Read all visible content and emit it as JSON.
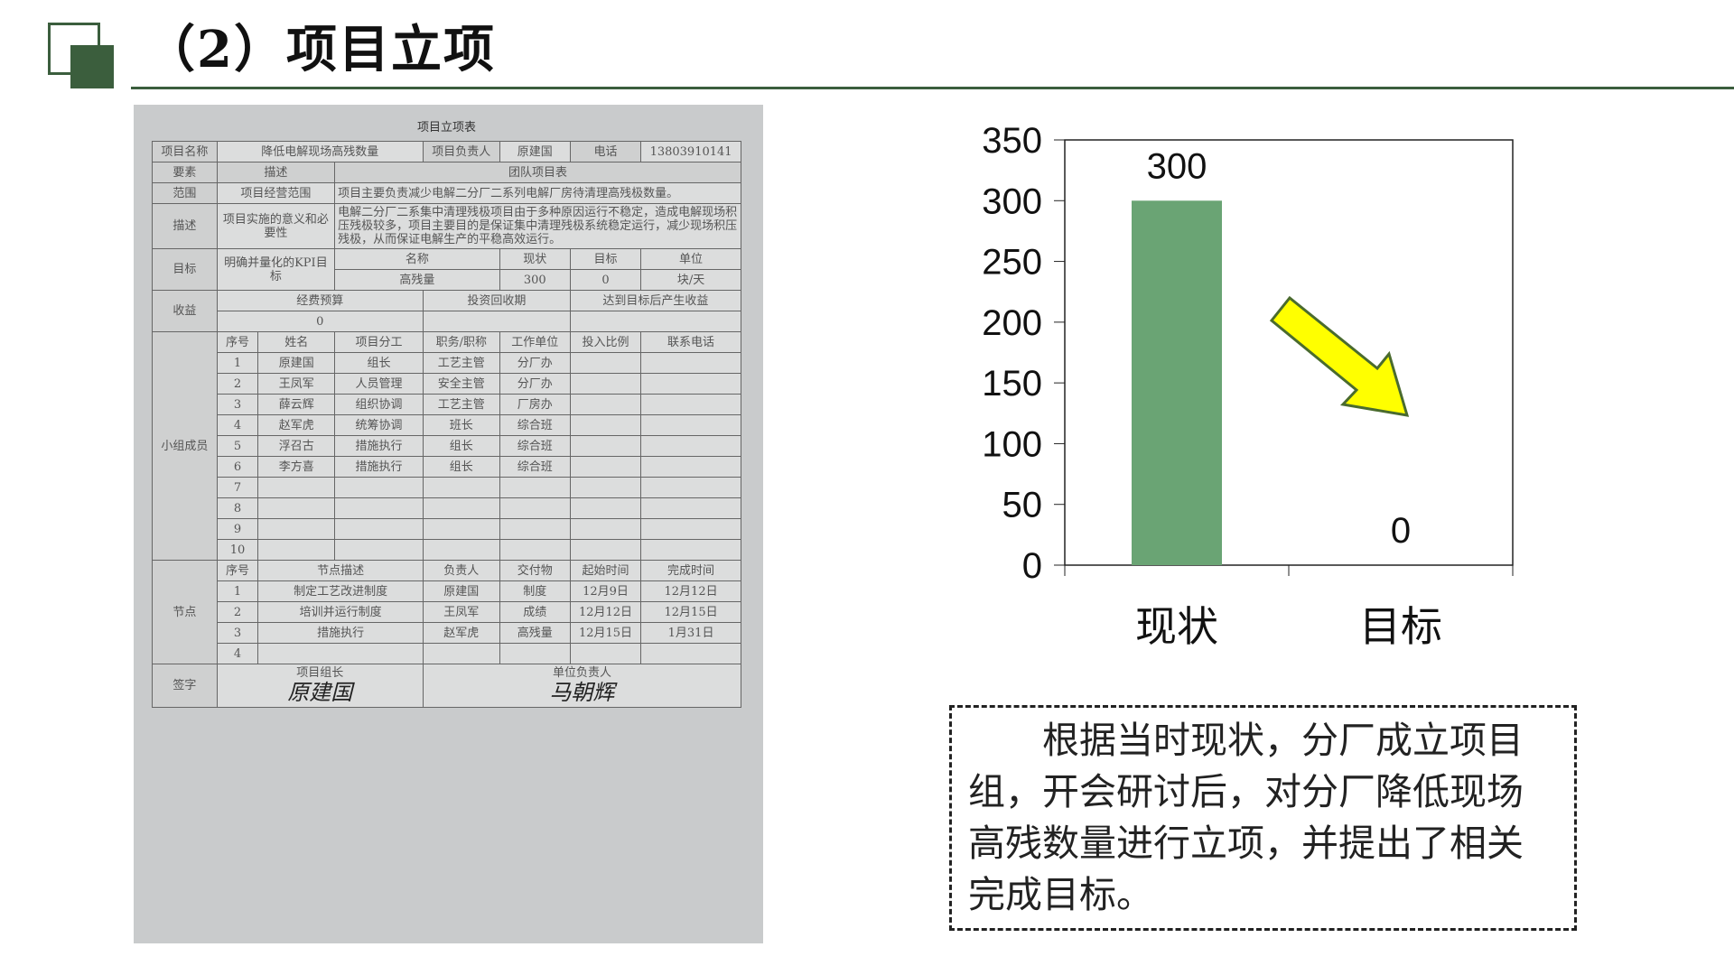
{
  "header": {
    "title": "（2）项目立项"
  },
  "form": {
    "title": "项目立项表",
    "project_name_label": "项目名称",
    "project_name": "降低电解现场高残数量",
    "leader_label": "项目负责人",
    "leader": "原建国",
    "phone_label": "电话",
    "phone": "13803910141",
    "elem_label": "要素",
    "desc_label": "描述",
    "team_label": "团队项目表",
    "scope_label": "范围",
    "scope_desc": "项目经营范围",
    "scope_text": "项目主要负责减少电解二分厂二系列电解厂房待清理高残极数量。",
    "describe_label": "描述",
    "describe_desc": "项目实施的意义和必要性",
    "describe_text": "电解二分厂二系集中清理残极项目由于多种原因运行不稳定，造成电解现场积压残极较多，项目主要目的是保证集中清理残极系统稳定运行，减少现场积压残极，从而保证电解生产的平稳高效运行。",
    "goal_label": "目标",
    "goal_desc": "明确并量化的KPI目标",
    "kpi_headers": [
      "名称",
      "现状",
      "目标",
      "单位"
    ],
    "kpi_row": [
      "高残量",
      "300",
      "0",
      "块/天"
    ],
    "benefit_label": "收益",
    "benefit_headers": [
      "经费预算",
      "投资回收期",
      "达到目标后产生收益"
    ],
    "budget": "0",
    "members_label": "小组成员",
    "member_headers": [
      "序号",
      "姓名",
      "项目分工",
      "职务/职称",
      "工作单位",
      "投入比例",
      "联系电话"
    ],
    "members": [
      [
        "1",
        "原建国",
        "组长",
        "工艺主管",
        "分厂办"
      ],
      [
        "2",
        "王凤军",
        "人员管理",
        "安全主管",
        "分厂办"
      ],
      [
        "3",
        "薛云辉",
        "组织协调",
        "工艺主管",
        "厂房办"
      ],
      [
        "4",
        "赵军虎",
        "统筹协调",
        "班长",
        "综合班"
      ],
      [
        "5",
        "浮召古",
        "措施执行",
        "组长",
        "综合班"
      ],
      [
        "6",
        "李方喜",
        "措施执行",
        "组长",
        "综合班"
      ],
      [
        "7",
        "",
        "",
        "",
        ""
      ],
      [
        "8",
        "",
        "",
        "",
        ""
      ],
      [
        "9",
        "",
        "",
        "",
        ""
      ],
      [
        "10",
        "",
        "",
        "",
        ""
      ]
    ],
    "nodes_label": "节点",
    "node_headers": [
      "序号",
      "节点描述",
      "负责人",
      "交付物",
      "起始时间",
      "完成时间"
    ],
    "nodes": [
      [
        "1",
        "制定工艺改进制度",
        "原建国",
        "制度",
        "12月9日",
        "12月12日"
      ],
      [
        "2",
        "培训并运行制度",
        "王凤军",
        "成绩",
        "12月12日",
        "12月15日"
      ],
      [
        "3",
        "措施执行",
        "赵军虎",
        "高残量",
        "12月15日",
        "1月31日"
      ],
      [
        "4",
        "",
        "",
        "",
        "",
        ""
      ]
    ],
    "sign_label": "签字",
    "sign_leader_label": "项目组长",
    "sign_unit_label": "单位负责人",
    "sign_leader": "原建国",
    "sign_unit": "马朝辉"
  },
  "chart_data": {
    "type": "bar",
    "categories": [
      "现状",
      "目标"
    ],
    "values": [
      300,
      0
    ],
    "ylim": [
      0,
      350
    ],
    "yticks": [
      0,
      50,
      100,
      150,
      200,
      250,
      300,
      350
    ],
    "bar_color": "#6aa474",
    "arrow_color": "#ffff00",
    "grid": false
  },
  "summary": {
    "text": "根据当时现状，分厂成立项目组，开会研讨后，对分厂降低现场高残数量进行立项，并提出了相关完成目标。"
  }
}
